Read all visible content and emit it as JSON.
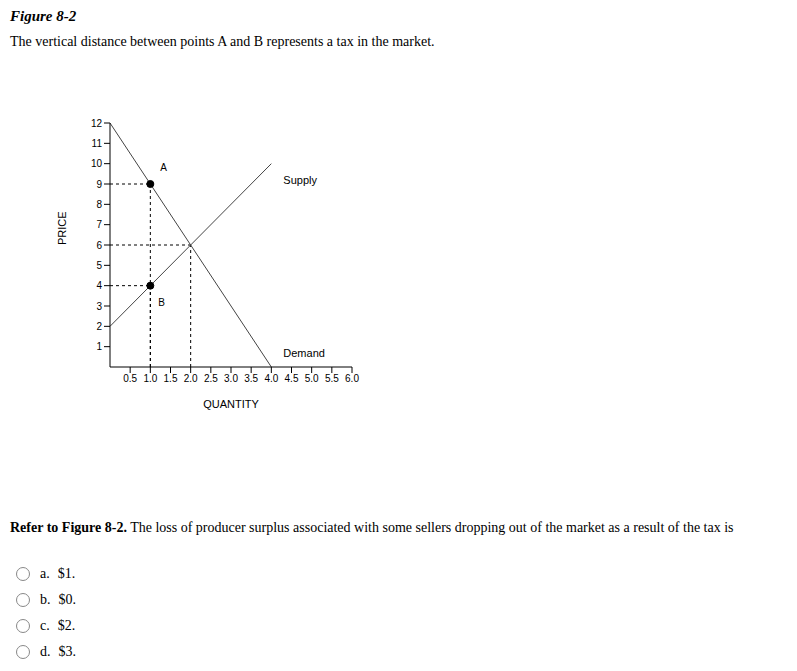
{
  "figure_title": "Figure 8-2",
  "caption": "The vertical distance between points A and B represents a tax in the market.",
  "chart_data": {
    "type": "line",
    "xlabel": "QUANTITY",
    "ylabel": "PRICE",
    "xlim": [
      0,
      6
    ],
    "ylim": [
      0,
      12
    ],
    "xticks": [
      0.5,
      {
        "value": 1,
        "label": "1.0"
      },
      1.5,
      {
        "value": 2,
        "label": "2.0"
      },
      2.5,
      {
        "value": 3,
        "label": "3.0"
      },
      3.5,
      {
        "value": 4,
        "label": "4.0"
      },
      4.5,
      {
        "value": 5,
        "label": "5.0"
      },
      5.5,
      {
        "value": 6,
        "label": "6.0"
      }
    ],
    "yticks": [
      1,
      2,
      3,
      4,
      5,
      6,
      7,
      8,
      9,
      10,
      11,
      12
    ],
    "series": [
      {
        "name": "Supply",
        "color": "#444444",
        "x": [
          0,
          4
        ],
        "values": [
          2,
          10
        ]
      },
      {
        "name": "Demand",
        "color": "#444444",
        "x": [
          0,
          4
        ],
        "values": [
          12,
          0
        ]
      }
    ],
    "points": [
      {
        "label": "A",
        "x": 1,
        "y": 9
      },
      {
        "label": "B",
        "x": 1,
        "y": 4
      }
    ],
    "equilibrium": {
      "x": 2,
      "y": 6
    }
  },
  "question": {
    "lead": "Refer to Figure 8-2.",
    "text": "The loss of producer surplus associated with some sellers dropping out of the market as a result of the tax is"
  },
  "options": [
    {
      "letter": "a.",
      "text": "$1."
    },
    {
      "letter": "b.",
      "text": "$0."
    },
    {
      "letter": "c.",
      "text": "$2."
    },
    {
      "letter": "d.",
      "text": "$3."
    }
  ]
}
